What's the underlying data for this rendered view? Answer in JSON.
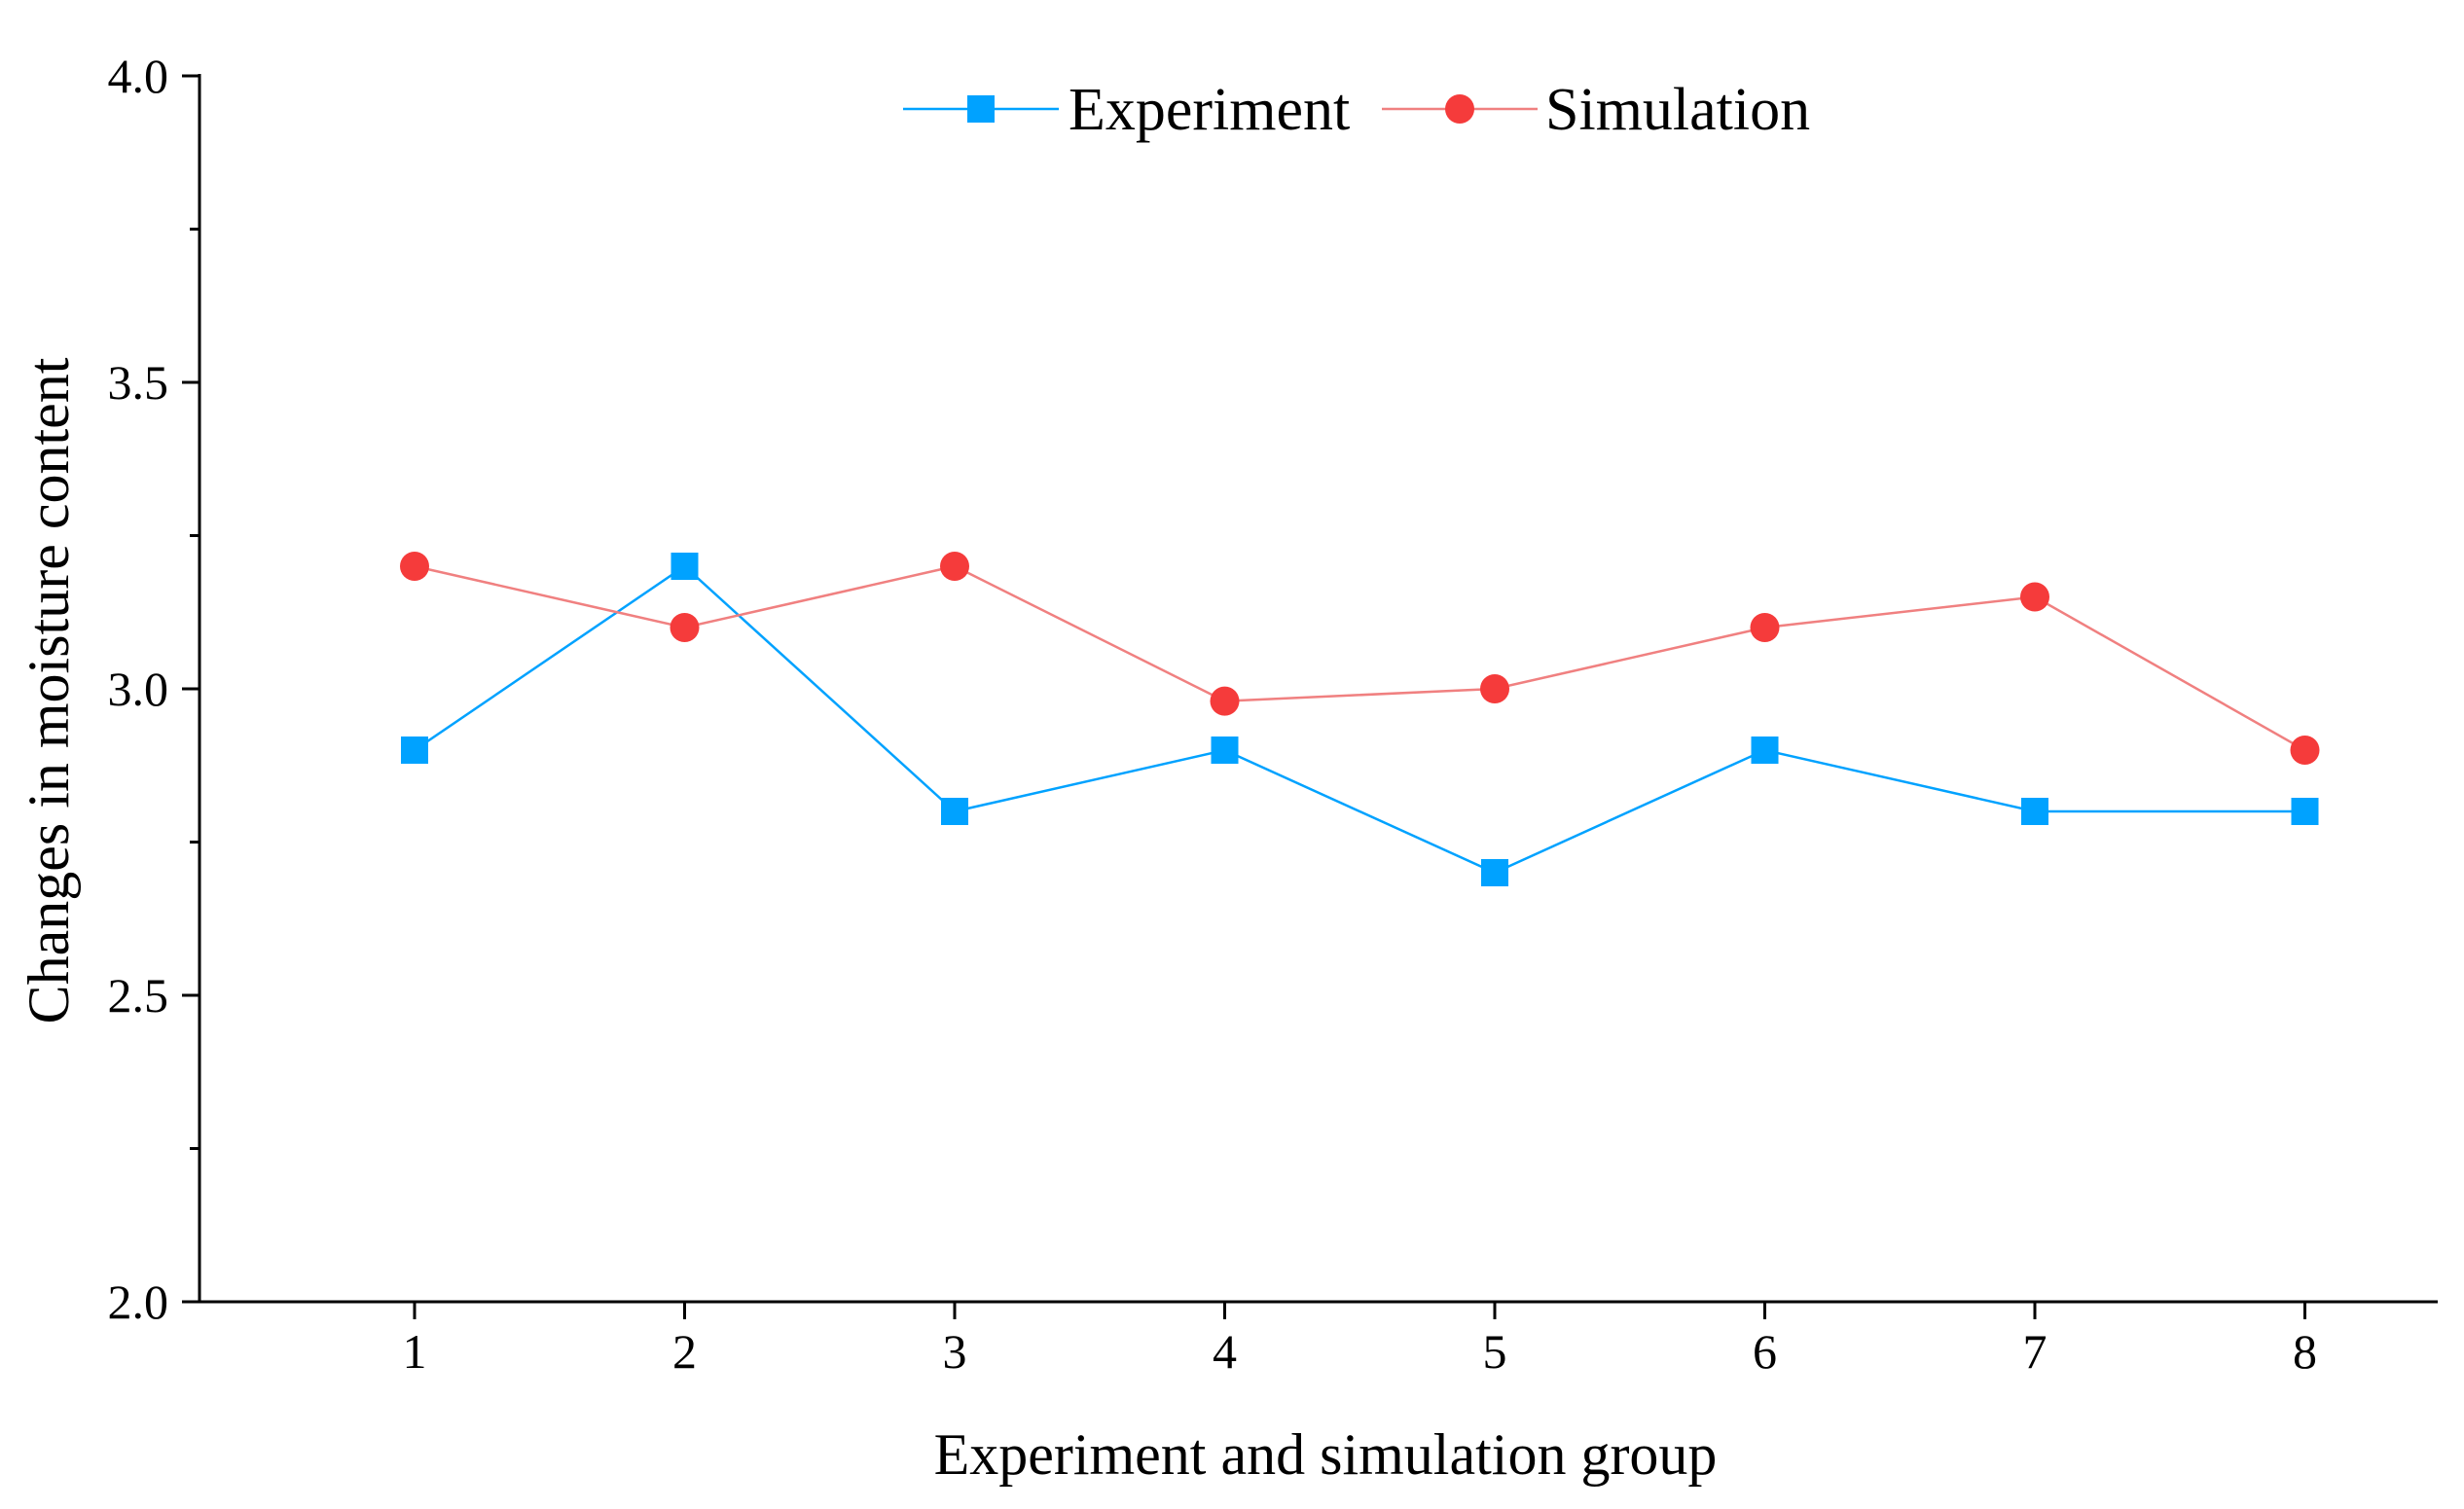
{
  "chart_data": {
    "type": "line",
    "title": "",
    "xlabel": "Experiment and simulation group",
    "ylabel": "Changes in moisture content",
    "categories": [
      "1",
      "2",
      "3",
      "4",
      "5",
      "6",
      "7",
      "8"
    ],
    "ylim": [
      2.0,
      4.0
    ],
    "yticks": [
      "2.0",
      "2.5",
      "3.0",
      "3.5",
      "4.0"
    ],
    "yminor_step": 0.25,
    "grid": false,
    "legend_position": "top-center",
    "series": [
      {
        "name": "Experiment",
        "marker": "square",
        "color": "#00a2ff",
        "values": [
          2.9,
          3.2,
          2.8,
          2.9,
          2.7,
          2.9,
          2.8,
          2.8
        ]
      },
      {
        "name": "Simulation",
        "marker": "circle",
        "color": "#f53b3b",
        "line_color": "#f08080",
        "values": [
          3.2,
          3.1,
          3.2,
          2.98,
          3.0,
          3.1,
          3.15,
          2.9
        ]
      }
    ]
  }
}
